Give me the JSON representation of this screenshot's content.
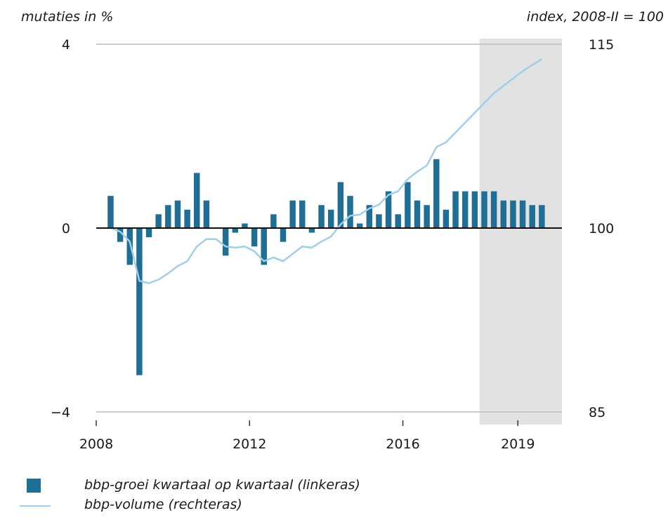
{
  "chart_data": {
    "type": "bar",
    "left_axis_title": "mutaties in %",
    "right_axis_title": "index, 2008-II = 100",
    "left_ylim": [
      -4,
      4
    ],
    "left_ticks": [
      "4",
      "0",
      "−4"
    ],
    "right_ylim": [
      85,
      115
    ],
    "right_ticks": [
      "115",
      "100",
      "85"
    ],
    "x_range": [
      2008.0,
      2020.15
    ],
    "x_tick_labels": [
      "2008",
      "2012",
      "2016",
      "2019"
    ],
    "x_tick_values": [
      2008,
      2012,
      2016,
      2019
    ],
    "forecast_shade": [
      2018.0,
      2020.15
    ],
    "grid": "horizontal at top and bottom only",
    "colors": {
      "bar": "#1f6e96",
      "line": "#9fd0e5",
      "shade": "#e2e2e2",
      "grid": "#bcbcbc"
    },
    "series": [
      {
        "name": "bbp-groei kwartaal op kwartaal (linkeras)",
        "kind": "bar",
        "values": [
          0.7,
          -0.3,
          -0.8,
          -3.2,
          -0.2,
          0.3,
          0.5,
          0.6,
          0.4,
          1.2,
          0.6,
          0.0,
          -0.6,
          -0.1,
          0.1,
          -0.4,
          -0.8,
          0.3,
          -0.3,
          0.6,
          0.6,
          -0.1,
          0.5,
          0.4,
          1.0,
          0.7,
          0.1,
          0.5,
          0.3,
          0.8,
          0.3,
          1.0,
          0.6,
          0.5,
          1.5,
          0.4,
          0.8,
          0.8,
          0.8,
          0.8,
          0.8,
          0.6,
          0.6,
          0.6,
          0.5,
          0.5
        ]
      },
      {
        "name": "bbp-volume (rechteras)",
        "kind": "line",
        "values": [
          100.0,
          99.7,
          98.9,
          95.7,
          95.5,
          95.8,
          96.3,
          96.9,
          97.3,
          98.5,
          99.1,
          99.1,
          98.5,
          98.4,
          98.5,
          98.1,
          97.3,
          97.6,
          97.3,
          97.9,
          98.5,
          98.4,
          98.9,
          99.3,
          100.3,
          101.0,
          101.1,
          101.6,
          101.9,
          102.7,
          103.0,
          104.0,
          104.6,
          105.1,
          106.6,
          107.0,
          107.8,
          108.6,
          109.4,
          110.2,
          111.0,
          111.6,
          112.2,
          112.8,
          113.3,
          113.8
        ]
      }
    ],
    "first_quarter_year": 2008.375,
    "quarter_step": 0.25
  },
  "legend": [
    {
      "label": "bbp-groei kwartaal op kwartaal (linkeras)"
    },
    {
      "label": "bbp-volume (rechteras)"
    }
  ]
}
